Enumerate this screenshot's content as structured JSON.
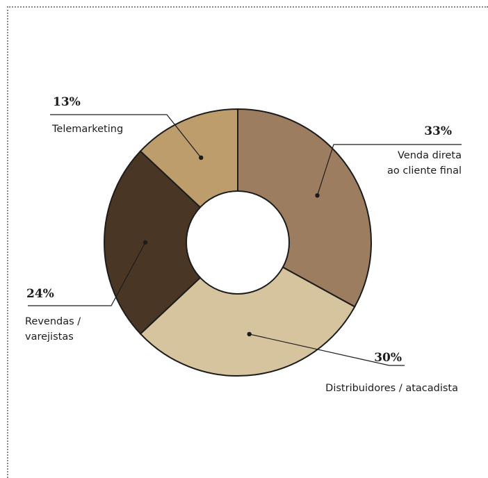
{
  "chart_data": {
    "type": "pie",
    "variant": "donut",
    "categories": [
      "Venda direta ao cliente final",
      "Distribuidores / atacadista",
      "Revendas / varejistas",
      "Telemarketing"
    ],
    "values": [
      33,
      30,
      24,
      13
    ],
    "colors": [
      "#9d7d5f",
      "#d5c49e",
      "#4a3625",
      "#bc9d6b"
    ],
    "labels": [
      {
        "pct": "33%",
        "lines": [
          "Venda direta",
          "ao cliente final"
        ]
      },
      {
        "pct": "30%",
        "lines": [
          "Distribuidores / atacadista"
        ]
      },
      {
        "pct": "24%",
        "lines": [
          "Revendas /",
          "varejistas"
        ]
      },
      {
        "pct": "13%",
        "lines": [
          "Telemarketing"
        ]
      }
    ],
    "start": "top",
    "direction": "clockwise",
    "legend": "none"
  }
}
